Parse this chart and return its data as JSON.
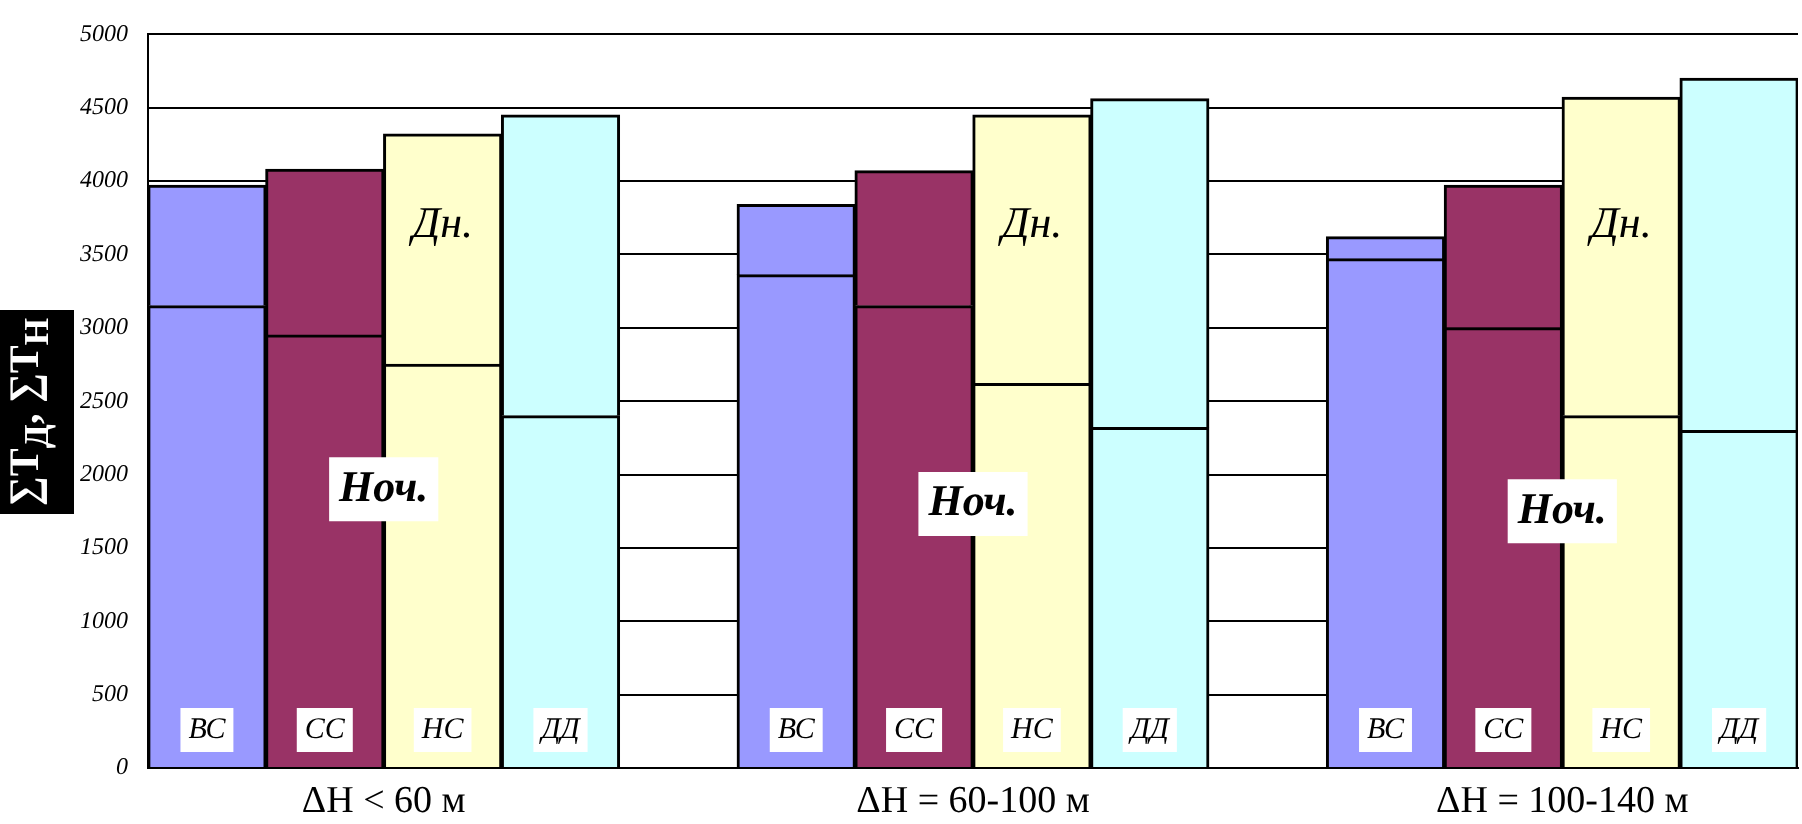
{
  "chart_data": {
    "type": "bar",
    "ylabel": "∑Т$_{Д}$, ∑Т$_{Н}$",
    "categories": [
      "ВС",
      "СС",
      "НС",
      "ДД",
      null,
      "ВС",
      "СС",
      "НС",
      "ДД",
      null,
      "ВС",
      "СС",
      "НС",
      "ДД"
    ],
    "stacked": true,
    "ylim": [
      0,
      5000
    ],
    "yticks": [
      0,
      500,
      1000,
      1500,
      2000,
      2500,
      3000,
      3500,
      4000,
      4500,
      5000
    ],
    "grid": "y",
    "legend": false,
    "series": [
      {
        "colors": [
          "#9999ff",
          "#993366",
          "#ffffcc",
          "#ccffff",
          null,
          "#9999ff",
          "#993366",
          "#ffffcc",
          "#ccffff",
          null,
          "#9999ff",
          "#993366",
          "#ffffcc",
          "#ccffff"
        ],
        "values": [
          3150,
          2950,
          2750,
          2400,
          null,
          3360,
          3150,
          2620,
          2320,
          null,
          3470,
          3000,
          2400,
          2300
        ]
      },
      {
        "colors": [
          "#9999ff",
          "#993366",
          "#ffffcc",
          "#ccffff",
          null,
          "#9999ff",
          "#993366",
          "#ffffcc",
          "#ccffff",
          null,
          "#9999ff",
          "#993366",
          "#ffffcc",
          "#ccffff"
        ],
        "values": [
          820,
          1130,
          1570,
          2050,
          null,
          480,
          920,
          1830,
          2240,
          null,
          150,
          970,
          2170,
          2400
        ]
      }
    ],
    "annotations": [
      "ΔН < 60 м",
      "ΔН = 60-100 м",
      "ΔН = 100-140 м",
      "Дн.",
      "Дн.",
      "Дн.",
      {
        "text": "Ноч.",
        "y": 1900
      },
      {
        "text": "Ноч.",
        "y": 1800
      },
      {
        "text": "Ноч.",
        "y": 1750
      }
    ]
  }
}
